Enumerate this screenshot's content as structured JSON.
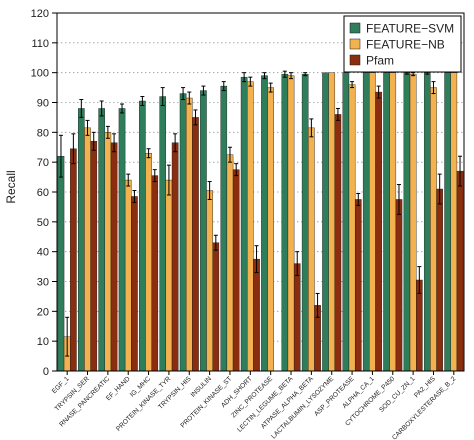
{
  "chart_data": {
    "type": "bar",
    "title": "",
    "xlabel": "",
    "ylabel": "Recall",
    "ylim": [
      0,
      120
    ],
    "yticks": [
      0,
      10,
      20,
      30,
      40,
      50,
      60,
      70,
      80,
      90,
      100,
      110,
      120
    ],
    "grid": "horizontal dotted",
    "legend_position": "top-right",
    "categories": [
      "EGF_1",
      "TRYPSIN_SER",
      "RNASE_PANCREATIC",
      "EF_HAND",
      "IG_MHC",
      "PROTEIN_KINASE_TYR",
      "TRYPSIN_HIS",
      "INSULIN",
      "PROTEIN_KINASE_ST",
      "ADH_SHORT",
      "ZINC_PROTEASE",
      "LECTIN_LEGUME_BETA",
      "ATPASE_ALPHA_BETA",
      "LACTALBUMIN_LYSOZYME",
      "ASP_PROTEASE",
      "ALPHA_CA_1",
      "CYTOCHROME_P450",
      "SOD_CU_ZN_1",
      "PA2_HIS",
      "CARBOXYLESTERASE_B_2"
    ],
    "series": [
      {
        "name": "FEATURE−SVM",
        "color": "#2e7d5b",
        "values": [
          72,
          88,
          88,
          88,
          90.5,
          92,
          93,
          94,
          95.5,
          98.5,
          99,
          99.5,
          99.5,
          100,
          100,
          100,
          100,
          100,
          100,
          100
        ],
        "errors": [
          7,
          3,
          2.5,
          1.5,
          1.5,
          3,
          2,
          1.5,
          1.5,
          1.5,
          1,
          1,
          0.5,
          0,
          0,
          0,
          0,
          0.5,
          0.5,
          0
        ]
      },
      {
        "name": "FEATURE−NB",
        "color": "#f3b24f",
        "values": [
          11.5,
          81.5,
          80,
          64,
          73,
          64,
          91.5,
          60.5,
          72.5,
          97,
          95,
          99,
          81.5,
          100,
          96,
          100,
          100,
          99.5,
          95,
          100
        ],
        "errors": [
          6.5,
          2.5,
          2,
          2,
          1.5,
          5,
          2,
          3,
          2.5,
          1.5,
          1.5,
          1,
          3,
          0,
          1,
          0,
          0,
          0.5,
          2,
          0
        ]
      },
      {
        "name": "Pfam",
        "color": "#8b2d0f",
        "values": [
          74.5,
          77,
          76.5,
          58.5,
          65.5,
          76.5,
          85,
          43,
          67.5,
          37.5,
          0,
          36,
          22,
          86,
          57.5,
          93.5,
          57.5,
          30.5,
          61,
          67
        ],
        "errors": [
          5,
          3,
          3,
          2,
          2,
          3,
          2.5,
          2.5,
          2,
          4.5,
          0,
          4,
          4,
          2,
          2,
          2,
          5,
          4.5,
          5,
          5
        ]
      }
    ]
  }
}
